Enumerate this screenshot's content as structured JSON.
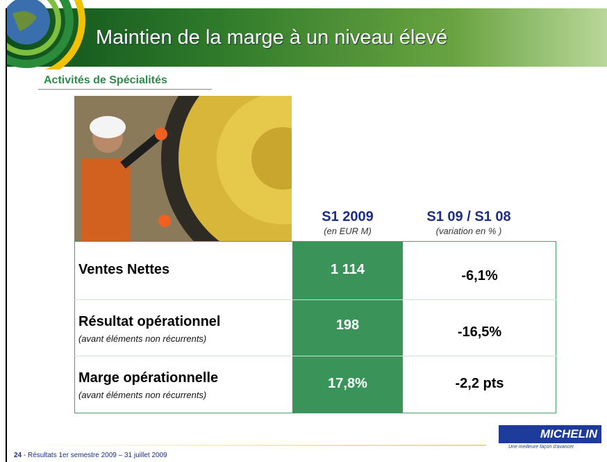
{
  "header": {
    "title": "Maintien de la marge à un niveau élevé",
    "subtitle": "Activités de Spécialités"
  },
  "table": {
    "columns": [
      {
        "title": "S1 2009",
        "subtitle": "(en EUR M)"
      },
      {
        "title": "S1 09 / S1 08",
        "subtitle": "(variation en % )"
      }
    ],
    "rows": [
      {
        "label": "Ventes Nettes",
        "value": "1 114",
        "variation": "-6,1%"
      },
      {
        "label": "Résultat opérationnel",
        "note": "(avant éléments non récurrents)",
        "value": "198",
        "variation": "-16,5%"
      },
      {
        "label": "Marge opérationnelle",
        "note": "(avant éléments non récurrents)",
        "value": "17,8%",
        "variation": "-2,2 pts"
      }
    ]
  },
  "footer": {
    "page": "24",
    "text": "- Résultats 1er semestre 2009 – 31 juillet 2009",
    "brand": "MICHELIN",
    "tagline": "Une meilleure façon d'avancer"
  }
}
